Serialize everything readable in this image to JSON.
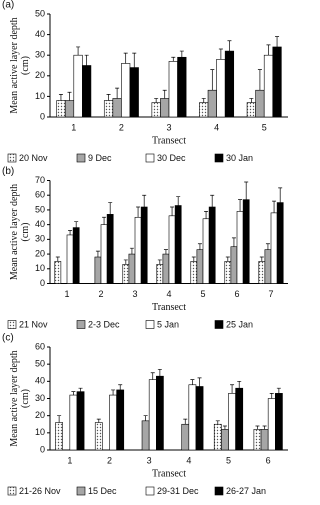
{
  "chart_data": [
    {
      "type": "bar",
      "label": "(a)",
      "xlabel": "Transect",
      "ylabel": [
        "Mean active layer depth",
        "(cm)"
      ],
      "categories": [
        "1",
        "2",
        "3",
        "4",
        "5"
      ],
      "ylim": [
        0,
        50
      ],
      "yticks": [
        0,
        10,
        20,
        30,
        40,
        50
      ],
      "series": [
        {
          "name": "20 Nov",
          "color": "#ffffff",
          "pattern": "dots",
          "values": [
            8,
            8,
            7,
            7,
            7
          ],
          "errors": [
            3,
            3,
            2,
            2,
            2
          ]
        },
        {
          "name": "9 Dec",
          "color": "#a6a6a6",
          "values": [
            8,
            9,
            9,
            13,
            13
          ],
          "errors": [
            4,
            5,
            4,
            10,
            10
          ]
        },
        {
          "name": "30 Dec",
          "color": "#ffffff",
          "values": [
            30,
            26,
            27,
            28,
            30
          ],
          "errors": [
            4,
            5,
            2,
            5,
            5
          ]
        },
        {
          "name": "30 Jan",
          "color": "#000000",
          "values": [
            25,
            24,
            29,
            32,
            34
          ],
          "errors": [
            5,
            7,
            3,
            5,
            5
          ]
        }
      ]
    },
    {
      "type": "bar",
      "label": "(b)",
      "xlabel": "Transect",
      "ylabel": [
        "Mean active layer depth",
        "(cm)"
      ],
      "categories": [
        "1",
        "2",
        "3",
        "4",
        "5",
        "6",
        "7"
      ],
      "ylim": [
        0,
        70
      ],
      "yticks": [
        0,
        10,
        20,
        30,
        40,
        50,
        60,
        70
      ],
      "series": [
        {
          "name": "21 Nov",
          "color": "#ffffff",
          "pattern": "dots",
          "values": [
            15,
            null,
            13,
            13,
            15,
            15,
            15
          ],
          "errors": [
            3,
            null,
            3,
            3,
            3,
            3,
            3
          ]
        },
        {
          "name": "2-3 Dec",
          "color": "#a6a6a6",
          "values": [
            null,
            18,
            20,
            20,
            23,
            25,
            23
          ],
          "errors": [
            null,
            4,
            4,
            3,
            4,
            6,
            4
          ]
        },
        {
          "name": "5 Jan",
          "color": "#ffffff",
          "values": [
            33,
            40,
            45,
            46,
            44,
            49,
            48
          ],
          "errors": [
            3,
            5,
            7,
            6,
            5,
            8,
            8
          ]
        },
        {
          "name": "25 Jan",
          "color": "#000000",
          "values": [
            38,
            47,
            52,
            53,
            52,
            57,
            55
          ],
          "errors": [
            4,
            8,
            8,
            6,
            8,
            12,
            10
          ]
        }
      ]
    },
    {
      "type": "bar",
      "label": "(c)",
      "xlabel": "Transect",
      "ylabel": [
        "Mean active layer depth",
        "(cm)"
      ],
      "categories": [
        "1",
        "2",
        "3",
        "4",
        "5",
        "6"
      ],
      "ylim": [
        0,
        60
      ],
      "yticks": [
        0,
        10,
        20,
        30,
        40,
        50,
        60
      ],
      "series": [
        {
          "name": "21-26 Nov",
          "color": "#ffffff",
          "pattern": "dots",
          "values": [
            16,
            16,
            null,
            null,
            15,
            12
          ],
          "errors": [
            4,
            2,
            null,
            null,
            2,
            2
          ]
        },
        {
          "name": "15 Dec",
          "color": "#a6a6a6",
          "values": [
            null,
            null,
            17,
            15,
            12,
            12
          ],
          "errors": [
            null,
            null,
            3,
            3,
            2,
            2
          ]
        },
        {
          "name": "29-31 Dec",
          "color": "#ffffff",
          "values": [
            32,
            32,
            41,
            38,
            33,
            30
          ],
          "errors": [
            2,
            3,
            4,
            3,
            5,
            3
          ]
        },
        {
          "name": "26-27 Jan",
          "color": "#000000",
          "values": [
            34,
            35,
            43,
            37,
            36,
            33
          ],
          "errors": [
            2,
            3,
            4,
            5,
            4,
            3
          ]
        }
      ]
    }
  ]
}
